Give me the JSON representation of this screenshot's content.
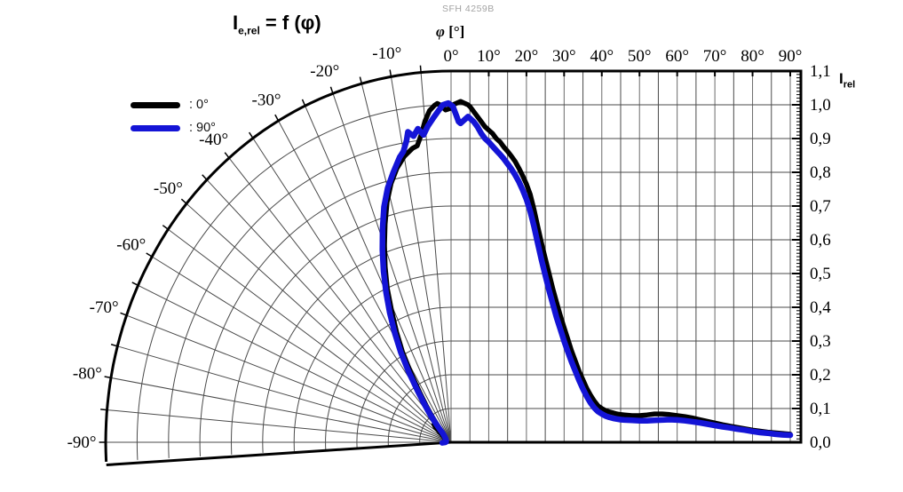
{
  "product_label": "SFH 4259B",
  "title": {
    "base": "I",
    "sub": "e,rel",
    "rest": " = f (φ)"
  },
  "axes": {
    "x_label_symbol": "φ",
    "x_label_unit": " [°]",
    "y_label_base": "I",
    "y_label_sub": "rel"
  },
  "legend": [
    {
      "label": ": 0°",
      "color": "#000000"
    },
    {
      "label": ": 90°",
      "color": "#1414d6"
    }
  ],
  "chart_data": {
    "type": "line",
    "title": "Ie,rel = f (φ)",
    "x_axis": {
      "label": "φ [°]",
      "range_deg": [
        -90,
        90
      ],
      "cartesian_tick_labels": [
        {
          "angle": 0,
          "label": "0°"
        },
        {
          "angle": 10,
          "label": "10°"
        },
        {
          "angle": 20,
          "label": "20°"
        },
        {
          "angle": 30,
          "label": "30°"
        },
        {
          "angle": 40,
          "label": "40°"
        },
        {
          "angle": 50,
          "label": "50°"
        },
        {
          "angle": 60,
          "label": "60°"
        },
        {
          "angle": 70,
          "label": "70°"
        },
        {
          "angle": 80,
          "label": "80°"
        },
        {
          "angle": 90,
          "label": "90°"
        }
      ],
      "polar_tick_labels": [
        {
          "angle": -10,
          "label": "-10°"
        },
        {
          "angle": -20,
          "label": "-20°"
        },
        {
          "angle": -30,
          "label": "-30°"
        },
        {
          "angle": -40,
          "label": "-40°"
        },
        {
          "angle": -50,
          "label": "-50°"
        },
        {
          "angle": -60,
          "label": "-60°"
        },
        {
          "angle": -70,
          "label": "-70°"
        },
        {
          "angle": -80,
          "label": "-80°"
        },
        {
          "angle": -90,
          "label": "-90°"
        }
      ],
      "grid_step_deg": 5
    },
    "y_axis": {
      "label": "Irel",
      "range": [
        0.0,
        1.1
      ],
      "ticks": [
        {
          "value": 1.1,
          "label": "1,1"
        },
        {
          "value": 1.0,
          "label": "1,0"
        },
        {
          "value": 0.9,
          "label": "0,9"
        },
        {
          "value": 0.8,
          "label": "0,8"
        },
        {
          "value": 0.7,
          "label": "0,7"
        },
        {
          "value": 0.6,
          "label": "0,6"
        },
        {
          "value": 0.5,
          "label": "0,5"
        },
        {
          "value": 0.4,
          "label": "0,4"
        },
        {
          "value": 0.3,
          "label": "0,3"
        },
        {
          "value": 0.2,
          "label": "0,2"
        },
        {
          "value": 0.1,
          "label": "0,1"
        },
        {
          "value": 0.0,
          "label": "0,0"
        }
      ],
      "minor_tick_step": 0.01
    },
    "projection": {
      "negative_angles": "polar-fan",
      "positive_angles": "cartesian"
    },
    "legend_position": "top-left",
    "grid": true,
    "series": [
      {
        "name": ": 0°",
        "color": "#000000",
        "width": 5.5,
        "points": [
          [
            -90,
            0.02
          ],
          [
            -85,
            0.02
          ],
          [
            -80,
            0.02
          ],
          [
            -75,
            0.02
          ],
          [
            -70,
            0.02
          ],
          [
            -65,
            0.022
          ],
          [
            -60,
            0.024
          ],
          [
            -56,
            0.028
          ],
          [
            -53,
            0.035
          ],
          [
            -50,
            0.05
          ],
          [
            -48,
            0.068
          ],
          [
            -46,
            0.076
          ],
          [
            -44,
            0.07
          ],
          [
            -42,
            0.062
          ],
          [
            -40,
            0.075
          ],
          [
            -38,
            0.1
          ],
          [
            -36,
            0.135
          ],
          [
            -34,
            0.18
          ],
          [
            -32,
            0.24
          ],
          [
            -30,
            0.31
          ],
          [
            -28,
            0.37
          ],
          [
            -26,
            0.43
          ],
          [
            -24,
            0.5
          ],
          [
            -22,
            0.56
          ],
          [
            -20,
            0.62
          ],
          [
            -18,
            0.68
          ],
          [
            -16,
            0.74
          ],
          [
            -14,
            0.79
          ],
          [
            -12,
            0.83
          ],
          [
            -10,
            0.86
          ],
          [
            -9,
            0.87
          ],
          [
            -8,
            0.88
          ],
          [
            -7,
            0.885
          ],
          [
            -6,
            0.915
          ],
          [
            -5,
            0.955
          ],
          [
            -4,
            0.985
          ],
          [
            -3,
            1.0
          ],
          [
            -2.5,
            1.005
          ],
          [
            -2,
            1.0
          ],
          [
            -1,
            0.985
          ],
          [
            0,
            0.99
          ],
          [
            0.5,
            1.0
          ],
          [
            1.5,
            1.005
          ],
          [
            2.5,
            1.01
          ],
          [
            3.5,
            1.005
          ],
          [
            4.5,
            1.0
          ],
          [
            5,
            0.995
          ],
          [
            6,
            0.98
          ],
          [
            7,
            0.965
          ],
          [
            8,
            0.95
          ],
          [
            9,
            0.935
          ],
          [
            10,
            0.925
          ],
          [
            11,
            0.915
          ],
          [
            12,
            0.9
          ],
          [
            13,
            0.89
          ],
          [
            14,
            0.875
          ],
          [
            15,
            0.862
          ],
          [
            16,
            0.848
          ],
          [
            17,
            0.832
          ],
          [
            18,
            0.812
          ],
          [
            19,
            0.79
          ],
          [
            20,
            0.765
          ],
          [
            21,
            0.735
          ],
          [
            22,
            0.69
          ],
          [
            23,
            0.64
          ],
          [
            24,
            0.59
          ],
          [
            25,
            0.545
          ],
          [
            26,
            0.5
          ],
          [
            27,
            0.455
          ],
          [
            28,
            0.415
          ],
          [
            29,
            0.375
          ],
          [
            30,
            0.34
          ],
          [
            31,
            0.305
          ],
          [
            32,
            0.27
          ],
          [
            33,
            0.24
          ],
          [
            34,
            0.21
          ],
          [
            35,
            0.185
          ],
          [
            36,
            0.16
          ],
          [
            37,
            0.14
          ],
          [
            38,
            0.122
          ],
          [
            39,
            0.108
          ],
          [
            40,
            0.1
          ],
          [
            41,
            0.094
          ],
          [
            42,
            0.09
          ],
          [
            43,
            0.087
          ],
          [
            44,
            0.084
          ],
          [
            45,
            0.082
          ],
          [
            46,
            0.081
          ],
          [
            47,
            0.08
          ],
          [
            48,
            0.079
          ],
          [
            50,
            0.079
          ],
          [
            52,
            0.081
          ],
          [
            54,
            0.084
          ],
          [
            56,
            0.084
          ],
          [
            58,
            0.082
          ],
          [
            60,
            0.079
          ],
          [
            62,
            0.076
          ],
          [
            64,
            0.072
          ],
          [
            66,
            0.067
          ],
          [
            68,
            0.062
          ],
          [
            70,
            0.057
          ],
          [
            72,
            0.052
          ],
          [
            74,
            0.048
          ],
          [
            76,
            0.044
          ],
          [
            78,
            0.04
          ],
          [
            80,
            0.036
          ],
          [
            82,
            0.033
          ],
          [
            84,
            0.03
          ],
          [
            86,
            0.028
          ],
          [
            88,
            0.026
          ],
          [
            90,
            0.024
          ]
        ]
      },
      {
        "name": ": 90°",
        "color": "#1414d6",
        "width": 6.5,
        "points": [
          [
            -93,
            0.028
          ],
          [
            -90,
            0.018
          ],
          [
            -85,
            0.016
          ],
          [
            -80,
            0.016
          ],
          [
            -75,
            0.016
          ],
          [
            -70,
            0.017
          ],
          [
            -65,
            0.018
          ],
          [
            -60,
            0.02
          ],
          [
            -56,
            0.022
          ],
          [
            -52,
            0.025
          ],
          [
            -48,
            0.03
          ],
          [
            -45,
            0.038
          ],
          [
            -43,
            0.05
          ],
          [
            -41,
            0.075
          ],
          [
            -39,
            0.105
          ],
          [
            -37,
            0.14
          ],
          [
            -35,
            0.185
          ],
          [
            -33,
            0.245
          ],
          [
            -31,
            0.31
          ],
          [
            -29,
            0.37
          ],
          [
            -27,
            0.43
          ],
          [
            -25,
            0.49
          ],
          [
            -23,
            0.55
          ],
          [
            -21,
            0.61
          ],
          [
            -19,
            0.67
          ],
          [
            -17,
            0.73
          ],
          [
            -15,
            0.78
          ],
          [
            -13,
            0.82
          ],
          [
            -11,
            0.86
          ],
          [
            -10,
            0.875
          ],
          [
            -9,
            0.905
          ],
          [
            -8.5,
            0.93
          ],
          [
            -7.5,
            0.915
          ],
          [
            -6.5,
            0.935
          ],
          [
            -5.5,
            0.915
          ],
          [
            -4.5,
            0.94
          ],
          [
            -3.5,
            0.96
          ],
          [
            -2.5,
            0.98
          ],
          [
            -1.5,
            1.0
          ],
          [
            -0.5,
            1.005
          ],
          [
            0.5,
            0.995
          ],
          [
            1.5,
            0.965
          ],
          [
            2,
            0.95
          ],
          [
            2.5,
            0.945
          ],
          [
            3.5,
            0.955
          ],
          [
            4.5,
            0.965
          ],
          [
            5,
            0.96
          ],
          [
            6,
            0.95
          ],
          [
            7,
            0.935
          ],
          [
            8,
            0.915
          ],
          [
            9,
            0.9
          ],
          [
            10,
            0.89
          ],
          [
            11,
            0.877
          ],
          [
            12,
            0.865
          ],
          [
            13,
            0.853
          ],
          [
            14,
            0.84
          ],
          [
            15,
            0.825
          ],
          [
            16,
            0.81
          ],
          [
            17,
            0.792
          ],
          [
            18,
            0.772
          ],
          [
            19,
            0.748
          ],
          [
            20,
            0.72
          ],
          [
            21,
            0.685
          ],
          [
            22,
            0.64
          ],
          [
            23,
            0.59
          ],
          [
            24,
            0.54
          ],
          [
            25,
            0.495
          ],
          [
            26,
            0.45
          ],
          [
            27,
            0.41
          ],
          [
            28,
            0.37
          ],
          [
            29,
            0.335
          ],
          [
            30,
            0.3
          ],
          [
            31,
            0.268
          ],
          [
            32,
            0.238
          ],
          [
            33,
            0.21
          ],
          [
            34,
            0.183
          ],
          [
            35,
            0.158
          ],
          [
            36,
            0.136
          ],
          [
            37,
            0.117
          ],
          [
            38,
            0.102
          ],
          [
            39,
            0.091
          ],
          [
            40,
            0.084
          ],
          [
            41,
            0.078
          ],
          [
            42,
            0.074
          ],
          [
            43,
            0.071
          ],
          [
            44,
            0.069
          ],
          [
            45,
            0.067
          ],
          [
            46,
            0.066
          ],
          [
            48,
            0.065
          ],
          [
            50,
            0.064
          ],
          [
            52,
            0.064
          ],
          [
            54,
            0.065
          ],
          [
            56,
            0.066
          ],
          [
            58,
            0.067
          ],
          [
            60,
            0.066
          ],
          [
            62,
            0.064
          ],
          [
            64,
            0.061
          ],
          [
            66,
            0.058
          ],
          [
            68,
            0.054
          ],
          [
            70,
            0.05
          ],
          [
            72,
            0.046
          ],
          [
            74,
            0.043
          ],
          [
            76,
            0.039
          ],
          [
            78,
            0.036
          ],
          [
            80,
            0.032
          ],
          [
            82,
            0.029
          ],
          [
            84,
            0.027
          ],
          [
            86,
            0.024
          ],
          [
            88,
            0.022
          ],
          [
            90,
            0.021
          ]
        ]
      }
    ]
  }
}
